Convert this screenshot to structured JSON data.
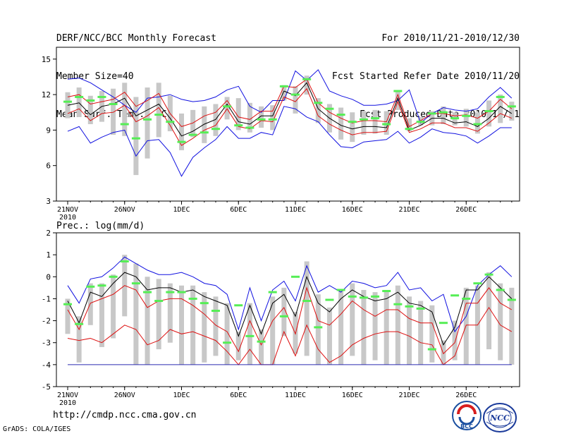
{
  "header": {
    "title": "DERF/NCC/BCC Monthly Forecast",
    "member_size": "Member Size=40",
    "variable": "Mean Surf. Temp.: °C",
    "period": "For 2010/11/21-2010/12/30",
    "started": "Fcst Started Refer Date 2010/11/20",
    "produced": "Fcst Produced Date 2010/11/21"
  },
  "footer": {
    "url": "http://cmdp.ncc.cma.gov.cn",
    "credit": "GrADS: COLA/IGES"
  },
  "logos": {
    "bcc": "BCC",
    "ncc": "NCC"
  },
  "colors": {
    "envelope": "#1010e0",
    "spread": "#dd1111",
    "mean": "#000000",
    "box": "#c8c8c8",
    "marker": "#55ee55",
    "baseline": "#2a2ab0"
  },
  "chart_data": [
    {
      "type": "line",
      "title": "Mean Surf. Temp.: °C",
      "days": 40,
      "xticks": [
        {
          "day": 0,
          "label": "21NOV",
          "sub": "2010"
        },
        {
          "day": 5,
          "label": "26NOV"
        },
        {
          "day": 10,
          "label": "1DEC"
        },
        {
          "day": 15,
          "label": "6DEC"
        },
        {
          "day": 20,
          "label": "11DEC"
        },
        {
          "day": 25,
          "label": "16DEC"
        },
        {
          "day": 30,
          "label": "21DEC"
        },
        {
          "day": 35,
          "label": "26DEC"
        }
      ],
      "ylim": [
        3,
        16
      ],
      "yticks": [
        3,
        6,
        9,
        12,
        15
      ],
      "series": [
        {
          "name": "max",
          "color": "#1010e0",
          "values": [
            13.3,
            13.4,
            13.0,
            12.4,
            11.8,
            11.1,
            10.5,
            11.7,
            11.8,
            12.0,
            11.6,
            11.4,
            11.5,
            11.8,
            12.4,
            12.7,
            11.0,
            10.5,
            11.5,
            11.5,
            14.0,
            13.2,
            14.1,
            12.3,
            11.9,
            11.6,
            11.1,
            11.1,
            11.2,
            11.5,
            12.4,
            9.6,
            10.4,
            10.9,
            10.7,
            10.6,
            10.8,
            11.8,
            12.6,
            11.7
          ]
        },
        {
          "name": "upper",
          "color": "#dd1111",
          "values": [
            11.8,
            12.0,
            11.2,
            11.4,
            11.6,
            12.2,
            11.0,
            11.5,
            12.1,
            10.4,
            9.3,
            9.6,
            10.2,
            10.5,
            11.5,
            10.1,
            9.9,
            10.6,
            10.6,
            12.7,
            12.6,
            13.3,
            11.3,
            10.5,
            10.0,
            9.6,
            9.8,
            9.8,
            9.7,
            12.0,
            9.3,
            9.8,
            10.4,
            10.4,
            10.2,
            10.3,
            10.0,
            10.6,
            11.6,
            10.8
          ]
        },
        {
          "name": "mean",
          "color": "#000000",
          "values": [
            11.1,
            11.3,
            10.3,
            11.0,
            11.2,
            11.7,
            10.2,
            10.7,
            11.2,
            10.0,
            8.5,
            8.9,
            9.5,
            9.9,
            11.2,
            9.7,
            9.5,
            10.2,
            10.2,
            12.3,
            11.9,
            13.0,
            10.8,
            10.0,
            9.4,
            9.1,
            9.3,
            9.3,
            9.2,
            11.7,
            9.0,
            9.4,
            10.0,
            10.0,
            9.6,
            9.7,
            9.3,
            10.0,
            11.0,
            10.4
          ]
        },
        {
          "name": "lower",
          "color": "#dd1111",
          "values": [
            10.4,
            10.8,
            9.8,
            10.4,
            10.5,
            11.1,
            9.7,
            10.2,
            10.9,
            9.4,
            7.7,
            8.3,
            9.0,
            9.4,
            10.8,
            9.3,
            9.1,
            9.8,
            9.7,
            11.8,
            11.4,
            12.5,
            10.2,
            9.5,
            9.0,
            8.6,
            8.8,
            8.8,
            8.9,
            11.4,
            8.8,
            9.1,
            9.6,
            9.6,
            9.2,
            9.2,
            8.9,
            9.6,
            10.4,
            10.0
          ]
        },
        {
          "name": "min",
          "color": "#1010e0",
          "values": [
            8.9,
            9.3,
            7.9,
            8.4,
            8.8,
            9.0,
            6.8,
            8.1,
            8.2,
            7.1,
            5.1,
            6.7,
            7.5,
            8.2,
            9.3,
            8.3,
            8.3,
            8.8,
            8.6,
            11.0,
            10.8,
            10.1,
            9.7,
            8.6,
            7.6,
            7.5,
            8.0,
            8.1,
            8.2,
            8.9,
            7.9,
            8.4,
            9.1,
            8.8,
            8.7,
            8.5,
            7.9,
            8.5,
            9.2,
            9.2
          ]
        }
      ],
      "boxes": {
        "top": [
          12.2,
          12.6,
          11.9,
          12.3,
          12.5,
          13.0,
          11.8,
          12.6,
          13.0,
          11.9,
          10.4,
          10.7,
          11.0,
          11.2,
          11.8,
          11.7,
          11.3,
          11.0,
          11.1,
          12.8,
          12.7,
          13.6,
          11.7,
          11.2,
          10.9,
          10.5,
          10.6,
          10.7,
          10.6,
          12.3,
          10.0,
          10.1,
          10.6,
          11.0,
          10.5,
          10.8,
          10.5,
          11.5,
          12.0,
          11.4
        ],
        "bottom": [
          10.0,
          10.1,
          9.5,
          9.7,
          8.6,
          8.5,
          5.2,
          6.6,
          8.4,
          8.9,
          7.3,
          8.4,
          7.9,
          8.5,
          9.9,
          9.0,
          8.8,
          9.2,
          9.0,
          11.5,
          10.4,
          12.0,
          9.6,
          8.8,
          8.2,
          8.0,
          8.6,
          8.7,
          8.6,
          10.7,
          8.9,
          9.4,
          9.4,
          9.5,
          9.4,
          9.3,
          8.7,
          9.3,
          9.6,
          9.8
        ]
      },
      "markers": [
        11.4,
        11.8,
        11.5,
        11.8,
        11.2,
        9.5,
        8.3,
        9.9,
        10.3,
        9.7,
        8.0,
        8.6,
        8.8,
        9.1,
        11.0,
        9.4,
        9.2,
        9.9,
        9.9,
        12.7,
        12.0,
        13.3,
        11.3,
        10.8,
        10.3,
        9.7,
        9.9,
        10.0,
        9.5,
        12.3,
        9.1,
        9.7,
        10.4,
        10.5,
        10.0,
        10.2,
        9.5,
        10.6,
        11.8,
        11.0
      ]
    },
    {
      "type": "line",
      "title": "Prec.: log(mm/d)",
      "days": 40,
      "xticks": [
        {
          "day": 0,
          "label": "21NOV",
          "sub": "2010"
        },
        {
          "day": 5,
          "label": "26NOV"
        },
        {
          "day": 10,
          "label": "1DEC"
        },
        {
          "day": 15,
          "label": "6DEC"
        },
        {
          "day": 20,
          "label": "11DEC"
        },
        {
          "day": 25,
          "label": "16DEC"
        },
        {
          "day": 30,
          "label": "21DEC"
        },
        {
          "day": 35,
          "label": "26DEC"
        }
      ],
      "ylim": [
        -5,
        2
      ],
      "yticks": [
        -5,
        -4,
        -3,
        -2,
        -1,
        0,
        1,
        2
      ],
      "series": [
        {
          "name": "max",
          "color": "#1010e0",
          "values": [
            -0.4,
            -1.2,
            -0.1,
            0.0,
            0.4,
            0.9,
            0.6,
            0.3,
            0.1,
            0.1,
            0.2,
            0.0,
            -0.3,
            -0.4,
            -0.8,
            -2.4,
            -0.5,
            -2.0,
            -0.6,
            -0.2,
            -1.1,
            0.5,
            -0.7,
            -0.4,
            -0.7,
            -0.2,
            -0.3,
            -0.5,
            -0.4,
            0.2,
            -0.6,
            -0.5,
            -1.1,
            -0.8,
            -2.5,
            -1.8,
            -0.4,
            0.1,
            0.5,
            0.0
          ]
        },
        {
          "name": "mean",
          "color": "#000000",
          "values": [
            -1.1,
            -2.1,
            -0.7,
            -0.9,
            -0.3,
            0.2,
            0.0,
            -0.6,
            -0.5,
            -0.5,
            -0.7,
            -0.6,
            -0.9,
            -1.1,
            -1.3,
            -2.7,
            -1.3,
            -2.6,
            -1.2,
            -0.8,
            -1.8,
            0.0,
            -1.2,
            -1.6,
            -1.0,
            -0.6,
            -0.9,
            -1.1,
            -1.0,
            -0.7,
            -1.2,
            -1.3,
            -1.6,
            -3.1,
            -2.3,
            -0.6,
            -0.6,
            0.0,
            -0.5,
            -1.0
          ]
        },
        {
          "name": "upper",
          "color": "#dd1111",
          "values": [
            -1.5,
            -2.4,
            -1.2,
            -1.0,
            -0.8,
            -0.4,
            -0.6,
            -1.4,
            -1.1,
            -1.0,
            -1.0,
            -1.3,
            -1.7,
            -2.2,
            -2.5,
            -3.4,
            -2.0,
            -3.1,
            -2.0,
            -1.4,
            -2.6,
            -0.5,
            -2.0,
            -2.2,
            -1.7,
            -1.1,
            -1.5,
            -1.8,
            -1.5,
            -1.5,
            -1.9,
            -2.1,
            -2.1,
            -3.5,
            -3.0,
            -1.2,
            -1.2,
            -0.5,
            -1.2,
            -1.5
          ]
        },
        {
          "name": "lower",
          "color": "#dd1111",
          "values": [
            -2.8,
            -2.9,
            -2.8,
            -3.0,
            -2.6,
            -2.2,
            -2.4,
            -3.1,
            -2.9,
            -2.4,
            -2.6,
            -2.5,
            -2.7,
            -2.9,
            -3.4,
            -4.0,
            -3.3,
            -4.0,
            -4.0,
            -2.5,
            -3.6,
            -2.2,
            -3.3,
            -3.9,
            -3.6,
            -3.1,
            -2.8,
            -2.6,
            -2.5,
            -2.5,
            -2.7,
            -3.0,
            -3.1,
            -4.0,
            -3.6,
            -2.2,
            -2.2,
            -1.4,
            -2.2,
            -2.5
          ]
        },
        {
          "name": "min",
          "color": "#2a2ab0",
          "values": [
            -4,
            -4,
            -4,
            -4,
            -4,
            -4,
            -4,
            -4,
            -4,
            -4,
            -4,
            -4,
            -4,
            -4,
            -4,
            -4,
            -4,
            -4,
            -4,
            -4,
            -4,
            -4,
            -4,
            -4,
            -4,
            -4,
            -4,
            -4,
            -4,
            -4,
            -4,
            -4,
            -4,
            -4,
            -4,
            -4,
            -4,
            -4,
            -4,
            -4
          ]
        }
      ],
      "boxes": {
        "top": [
          -1.0,
          -1.8,
          -0.3,
          -0.3,
          0.1,
          1.0,
          0.6,
          0.0,
          -0.1,
          -0.3,
          -0.4,
          -0.4,
          -0.7,
          -0.9,
          -1.2,
          -2.5,
          -1.2,
          -2.4,
          -0.9,
          -0.5,
          -1.6,
          0.7,
          -0.8,
          -1.4,
          -0.6,
          -0.3,
          -0.6,
          -0.7,
          -0.6,
          -0.4,
          -0.9,
          -1.1,
          -1.3,
          -2.9,
          -2.0,
          -0.5,
          -0.4,
          0.2,
          -0.3,
          -0.5
        ],
        "bottom": [
          -2.6,
          -3.9,
          -2.2,
          -3.2,
          -2.8,
          -1.8,
          -4.0,
          -4.0,
          -3.3,
          -3.0,
          -4.0,
          -4.0,
          -3.9,
          -3.6,
          -4.0,
          -3.8,
          -4.0,
          -4.0,
          -4.0,
          -2.7,
          -3.5,
          -3.6,
          -4.0,
          -4.0,
          -4.0,
          -3.6,
          -4.0,
          -3.8,
          -4.0,
          -4.0,
          -4.0,
          -4.0,
          -3.9,
          -4.0,
          -3.8,
          -4.0,
          -4.0,
          -3.3,
          -3.8,
          -4.0
        ]
      },
      "markers": [
        -1.25,
        -2.15,
        -0.45,
        -0.4,
        0.0,
        0.7,
        -0.3,
        -0.7,
        -1.1,
        -0.7,
        -0.7,
        -1.0,
        -1.2,
        -1.55,
        -3.0,
        -1.3,
        -2.7,
        -2.95,
        -0.7,
        -1.8,
        0.0,
        -1.1,
        -2.3,
        -1.05,
        -0.6,
        -0.9,
        -0.95,
        -0.9,
        -0.65,
        -1.25,
        -1.35,
        -1.45,
        -3.3,
        -2.1,
        -0.85,
        -1.0,
        -0.3,
        0.1,
        -0.6,
        -1.05
      ]
    }
  ]
}
